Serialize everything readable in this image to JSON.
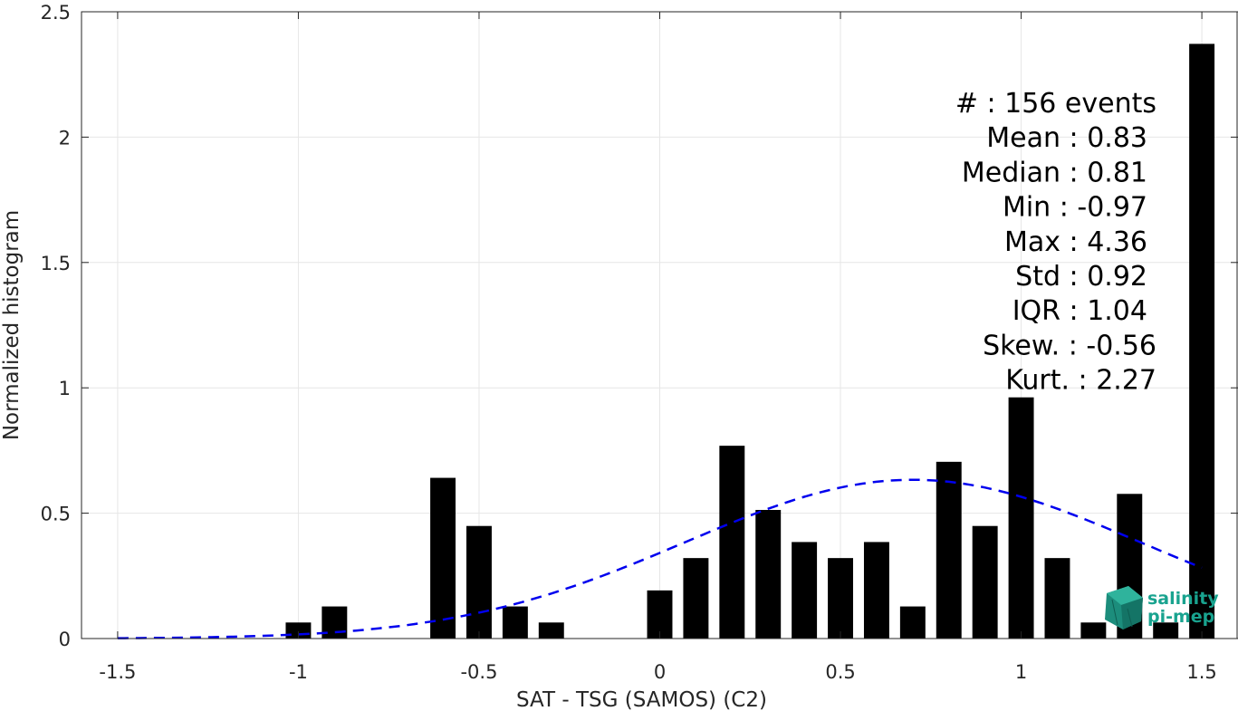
{
  "chart_data": {
    "type": "bar",
    "xlabel": "SAT - TSG (SAMOS) (C2)",
    "ylabel": "Normalized histogram",
    "xlim": [
      -1.6,
      1.6
    ],
    "ylim": [
      0,
      2.5
    ],
    "xticks": [
      "-1.5",
      "-1",
      "-0.5",
      "0",
      "0.5",
      "1",
      "1.5"
    ],
    "yticks": [
      "0",
      "0.5",
      "1",
      "1.5",
      "2",
      "2.5"
    ],
    "grid": true,
    "bin_width": 0.1,
    "x": [
      -1.0,
      -0.9,
      -0.6,
      -0.5,
      -0.4,
      -0.3,
      0.0,
      0.1,
      0.2,
      0.3,
      0.4,
      0.5,
      0.6,
      0.7,
      0.8,
      0.9,
      1.0,
      1.1,
      1.2,
      1.3,
      1.4,
      1.5
    ],
    "values": [
      0.064,
      0.128,
      0.641,
      0.449,
      0.128,
      0.064,
      0.192,
      0.321,
      0.769,
      0.513,
      0.385,
      0.321,
      0.385,
      0.128,
      0.705,
      0.449,
      0.962,
      0.321,
      0.064,
      0.577,
      0.064,
      2.372
    ],
    "fit_curve": {
      "style": "dashed",
      "color": "#0000ee",
      "mean": 0.7,
      "std": 0.63,
      "x_range": [
        -1.5,
        1.5
      ]
    },
    "colors": {
      "bar": "#000000",
      "grid": "#e6e6e6",
      "axis": "#262626"
    },
    "stats_box": {
      "placement": "top-right",
      "lines": [
        "#  : 156 events",
        "Mean : 0.83",
        "Median : 0.81",
        "Min : -0.97",
        "Max : 4.36",
        "Std : 0.92",
        "IQR : 1.04",
        "Skew. : -0.56",
        "Kurt. : 2.27"
      ]
    }
  },
  "logo": {
    "line1": "salinity",
    "line2": "pi-mep",
    "color": "#19a38f",
    "icon": "cube-logo-icon"
  }
}
